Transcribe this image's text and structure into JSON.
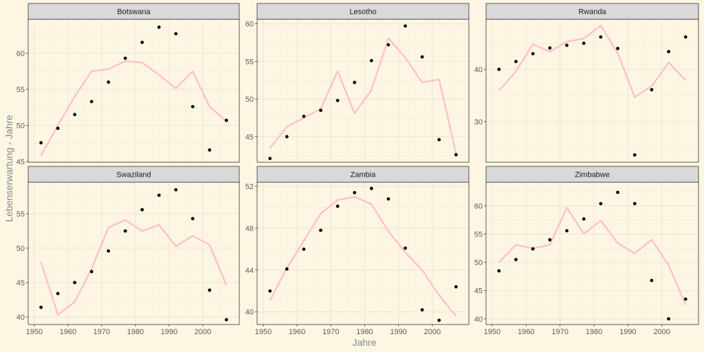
{
  "colors": {
    "background": "#fdf6e3",
    "panel": "#fdf6e3",
    "strip": "#d9d9d9",
    "grid_major": "#ece6d4",
    "grid_minor": "#f3ecda",
    "line": "#ffc0cb",
    "point": "#000000",
    "axis_text": "#5a5a5a",
    "axis_title": "#808a90"
  },
  "chart_data": {
    "type": "facet-line-scatter",
    "xlabel": "Jahre",
    "ylabel": "Lebenserwartung - Jahre",
    "x_ticks": [
      1950,
      1960,
      1970,
      1980,
      1990,
      2000
    ],
    "x": [
      1952,
      1957,
      1962,
      1967,
      1972,
      1977,
      1982,
      1987,
      1992,
      1997,
      2002,
      2007
    ],
    "panels": [
      {
        "title": "Botswana",
        "y_ticks": [
          45,
          50,
          55,
          60
        ],
        "ylim": [
          44.9,
          64.7
        ],
        "points": [
          47.6,
          49.6,
          51.5,
          53.3,
          56.0,
          59.3,
          61.5,
          63.6,
          62.7,
          52.6,
          46.6,
          50.7
        ],
        "line": [
          45.8,
          50.0,
          54.0,
          57.5,
          57.8,
          58.9,
          58.7,
          57.0,
          55.1,
          57.5,
          52.6,
          50.6
        ]
      },
      {
        "title": "Lesotho",
        "y_ticks": [
          45,
          50,
          55,
          60
        ],
        "ylim": [
          41.6,
          60.6
        ],
        "points": [
          42.1,
          45.0,
          47.7,
          48.5,
          49.8,
          52.2,
          55.1,
          57.2,
          59.7,
          55.6,
          44.6,
          42.6
        ],
        "line": [
          43.5,
          46.3,
          47.5,
          48.7,
          53.7,
          48.1,
          51.2,
          58.1,
          55.5,
          52.2,
          52.6,
          42.8
        ]
      },
      {
        "title": "Rwanda",
        "y_ticks": [
          30,
          40
        ],
        "ylim": [
          22.2,
          49.6
        ],
        "points": [
          40.0,
          41.5,
          43.0,
          44.1,
          44.6,
          45.0,
          46.2,
          44.0,
          23.6,
          36.1,
          43.4,
          46.2
        ],
        "line": [
          35.9,
          39.6,
          44.8,
          43.4,
          45.3,
          45.9,
          48.4,
          43.1,
          34.7,
          36.8,
          41.3,
          37.9
        ]
      },
      {
        "title": "Swaziland",
        "y_ticks": [
          40,
          45,
          50,
          55
        ],
        "ylim": [
          38.9,
          59.6
        ],
        "points": [
          41.4,
          43.4,
          45.0,
          46.6,
          49.6,
          52.5,
          55.6,
          57.7,
          58.5,
          54.3,
          43.9,
          39.6
        ],
        "line": [
          48.0,
          40.3,
          42.2,
          47.0,
          53.0,
          54.1,
          52.5,
          53.4,
          50.3,
          51.8,
          50.5,
          44.6
        ]
      },
      {
        "title": "Zambia",
        "y_ticks": [
          40,
          44,
          48,
          52
        ],
        "ylim": [
          38.8,
          52.4
        ],
        "points": [
          42.0,
          44.1,
          46.0,
          47.8,
          50.1,
          51.4,
          51.8,
          50.8,
          46.1,
          40.2,
          39.2,
          42.4
        ],
        "line": [
          41.1,
          44.2,
          46.8,
          49.4,
          50.7,
          51.0,
          50.3,
          47.7,
          45.7,
          44.0,
          41.6,
          39.6
        ]
      },
      {
        "title": "Zimbabwe",
        "y_ticks": [
          40,
          45,
          50,
          55,
          60
        ],
        "ylim": [
          39.0,
          64.2
        ],
        "points": [
          48.5,
          50.5,
          52.4,
          54.0,
          55.6,
          57.7,
          60.4,
          62.4,
          60.4,
          46.8,
          40.0,
          43.5
        ],
        "line": [
          50.0,
          53.1,
          52.5,
          53.1,
          59.7,
          55.1,
          57.4,
          53.4,
          51.6,
          54.0,
          49.5,
          42.5
        ]
      }
    ]
  }
}
